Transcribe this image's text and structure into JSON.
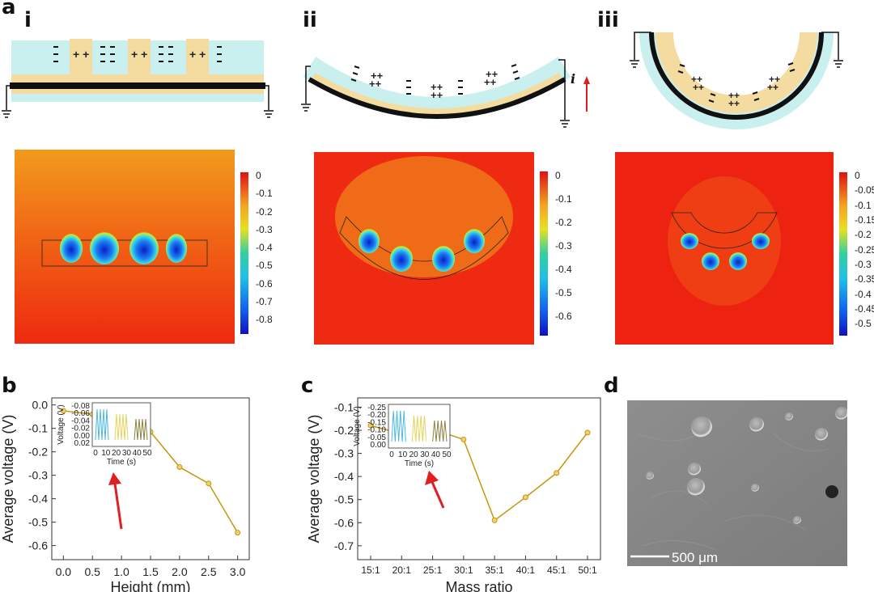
{
  "panels": {
    "a": "a",
    "b": "b",
    "c": "c",
    "d": "d",
    "sub_i": "i",
    "sub_ii": "ii",
    "sub_iii": "iii",
    "current_label": "i"
  },
  "colorbars": [
    {
      "ticks": [
        "0",
        "-0.1",
        "-0.2",
        "-0.3",
        "-0.4",
        "-0.5",
        "-0.6",
        "-0.7",
        "-0.8"
      ]
    },
    {
      "ticks": [
        "0",
        "-0.1",
        "-0.2",
        "-0.3",
        "-0.4",
        "-0.5",
        "-0.6"
      ]
    },
    {
      "ticks": [
        "0",
        "-0.05",
        "-0.1",
        "-0.15",
        "-0.2",
        "-0.25",
        "-0.3",
        "-0.35",
        "-0.4",
        "-0.45",
        "-0.5"
      ]
    }
  ],
  "chart_data": [
    {
      "type": "line",
      "x": [
        0.0,
        0.5,
        1.0,
        1.5,
        2.0,
        2.5,
        3.0
      ],
      "values": [
        -0.025,
        -0.04,
        -0.065,
        -0.115,
        -0.265,
        -0.335,
        -0.545
      ],
      "xticks": [
        "0.0",
        "0.5",
        "1.0",
        "1.5",
        "2.0",
        "2.5",
        "3.0"
      ],
      "yticks": [
        "0.0",
        "-0.1",
        "-0.2",
        "-0.3",
        "-0.4",
        "-0.5",
        "-0.6"
      ],
      "xlabel": "Height (mm)",
      "ylabel": "Average voltage (V)",
      "xlim": [
        -0.2,
        3.2
      ],
      "ylim": [
        0.03,
        -0.66
      ],
      "inset": {
        "xlabel": "Time (s)",
        "ylabel": "Voltage (V)",
        "xticks": [
          "0",
          "10",
          "20",
          "30",
          "40",
          "50"
        ],
        "yticks": [
          "-0.08",
          "-0.06",
          "-0.04",
          "-0.02",
          "0.00",
          "0.02"
        ]
      }
    },
    {
      "type": "line",
      "categories": [
        "15:1",
        "20:1",
        "25:1",
        "30:1",
        "35:1",
        "40:1",
        "45:1",
        "50:1"
      ],
      "values": [
        -0.18,
        -0.215,
        -0.195,
        -0.24,
        -0.59,
        -0.49,
        -0.385,
        -0.21
      ],
      "yticks": [
        "-0.7",
        "-0.6",
        "-0.5",
        "-0.4",
        "-0.3",
        "-0.2",
        "-0.1"
      ],
      "xlabel": "Mass ratio",
      "ylabel": "Average voltage (V)",
      "ylim": [
        -0.06,
        -0.76
      ],
      "inset": {
        "xlabel": "Time (s)",
        "ylabel": "Voltage (V)",
        "xticks": [
          "0",
          "10",
          "20",
          "30",
          "40",
          "50"
        ],
        "yticks": [
          "-0.25",
          "-0.20",
          "-0.15",
          "-0.10",
          "-0.05",
          "0.00"
        ]
      }
    }
  ],
  "sem": {
    "scalebar": "500 μm"
  },
  "colors": {
    "substrate": "#c9f0ee",
    "electret": "#f4dca0",
    "electrode": "#111111",
    "curve": "#c8960c",
    "arrow": "#e02020"
  }
}
